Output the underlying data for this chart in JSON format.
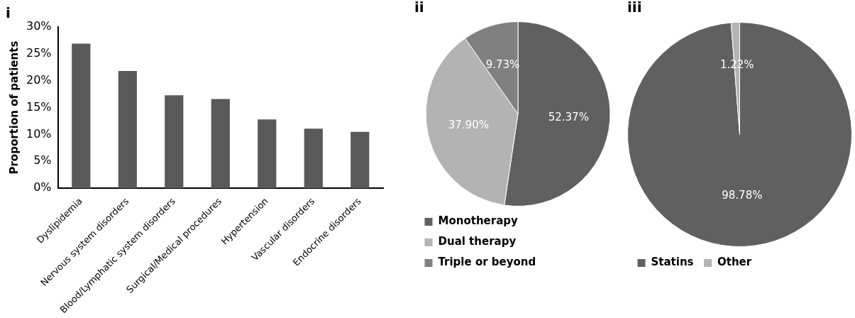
{
  "chart_data": [
    {
      "type": "bar",
      "title": "i",
      "ylabel": "Proportion of patients",
      "categories": [
        "Dyslipidemia",
        "Nervous system disorders",
        "Blood/Lymphatic system disorders",
        "Surgical/Medical procedures",
        "Hypertension",
        "Vascular disorders",
        "Endocrine disorders"
      ],
      "values": [
        26.9,
        21.8,
        17.3,
        16.6,
        12.8,
        11.1,
        10.5
      ],
      "color": "#595959",
      "ylim": [
        0,
        30
      ],
      "yticks": [
        {
          "value": 0,
          "label": "0%"
        },
        {
          "value": 5,
          "label": "5%"
        },
        {
          "value": 10,
          "label": "10%"
        },
        {
          "value": 15,
          "label": "15%"
        },
        {
          "value": 20,
          "label": "20%"
        },
        {
          "value": 25,
          "label": "25%"
        },
        {
          "value": 30,
          "label": "30%"
        }
      ],
      "grid": false
    },
    {
      "type": "pie",
      "title": "ii",
      "categories": [
        "Monotherapy",
        "Dual therapy",
        "Triple or beyond"
      ],
      "values": [
        52.37,
        37.9,
        9.73
      ],
      "colors": [
        "#606060",
        "#b3b3b3",
        "#808080"
      ],
      "value_labels": [
        "52.37%",
        "37.90%",
        "9.73%"
      ],
      "legend": "bottom"
    },
    {
      "type": "pie",
      "title": "iii",
      "categories": [
        "Statins",
        "Other"
      ],
      "values": [
        98.78,
        1.22
      ],
      "colors": [
        "#606060",
        "#b3b3b3"
      ],
      "value_labels": [
        "98.78%",
        "1.22%"
      ],
      "legend": "bottom"
    }
  ]
}
